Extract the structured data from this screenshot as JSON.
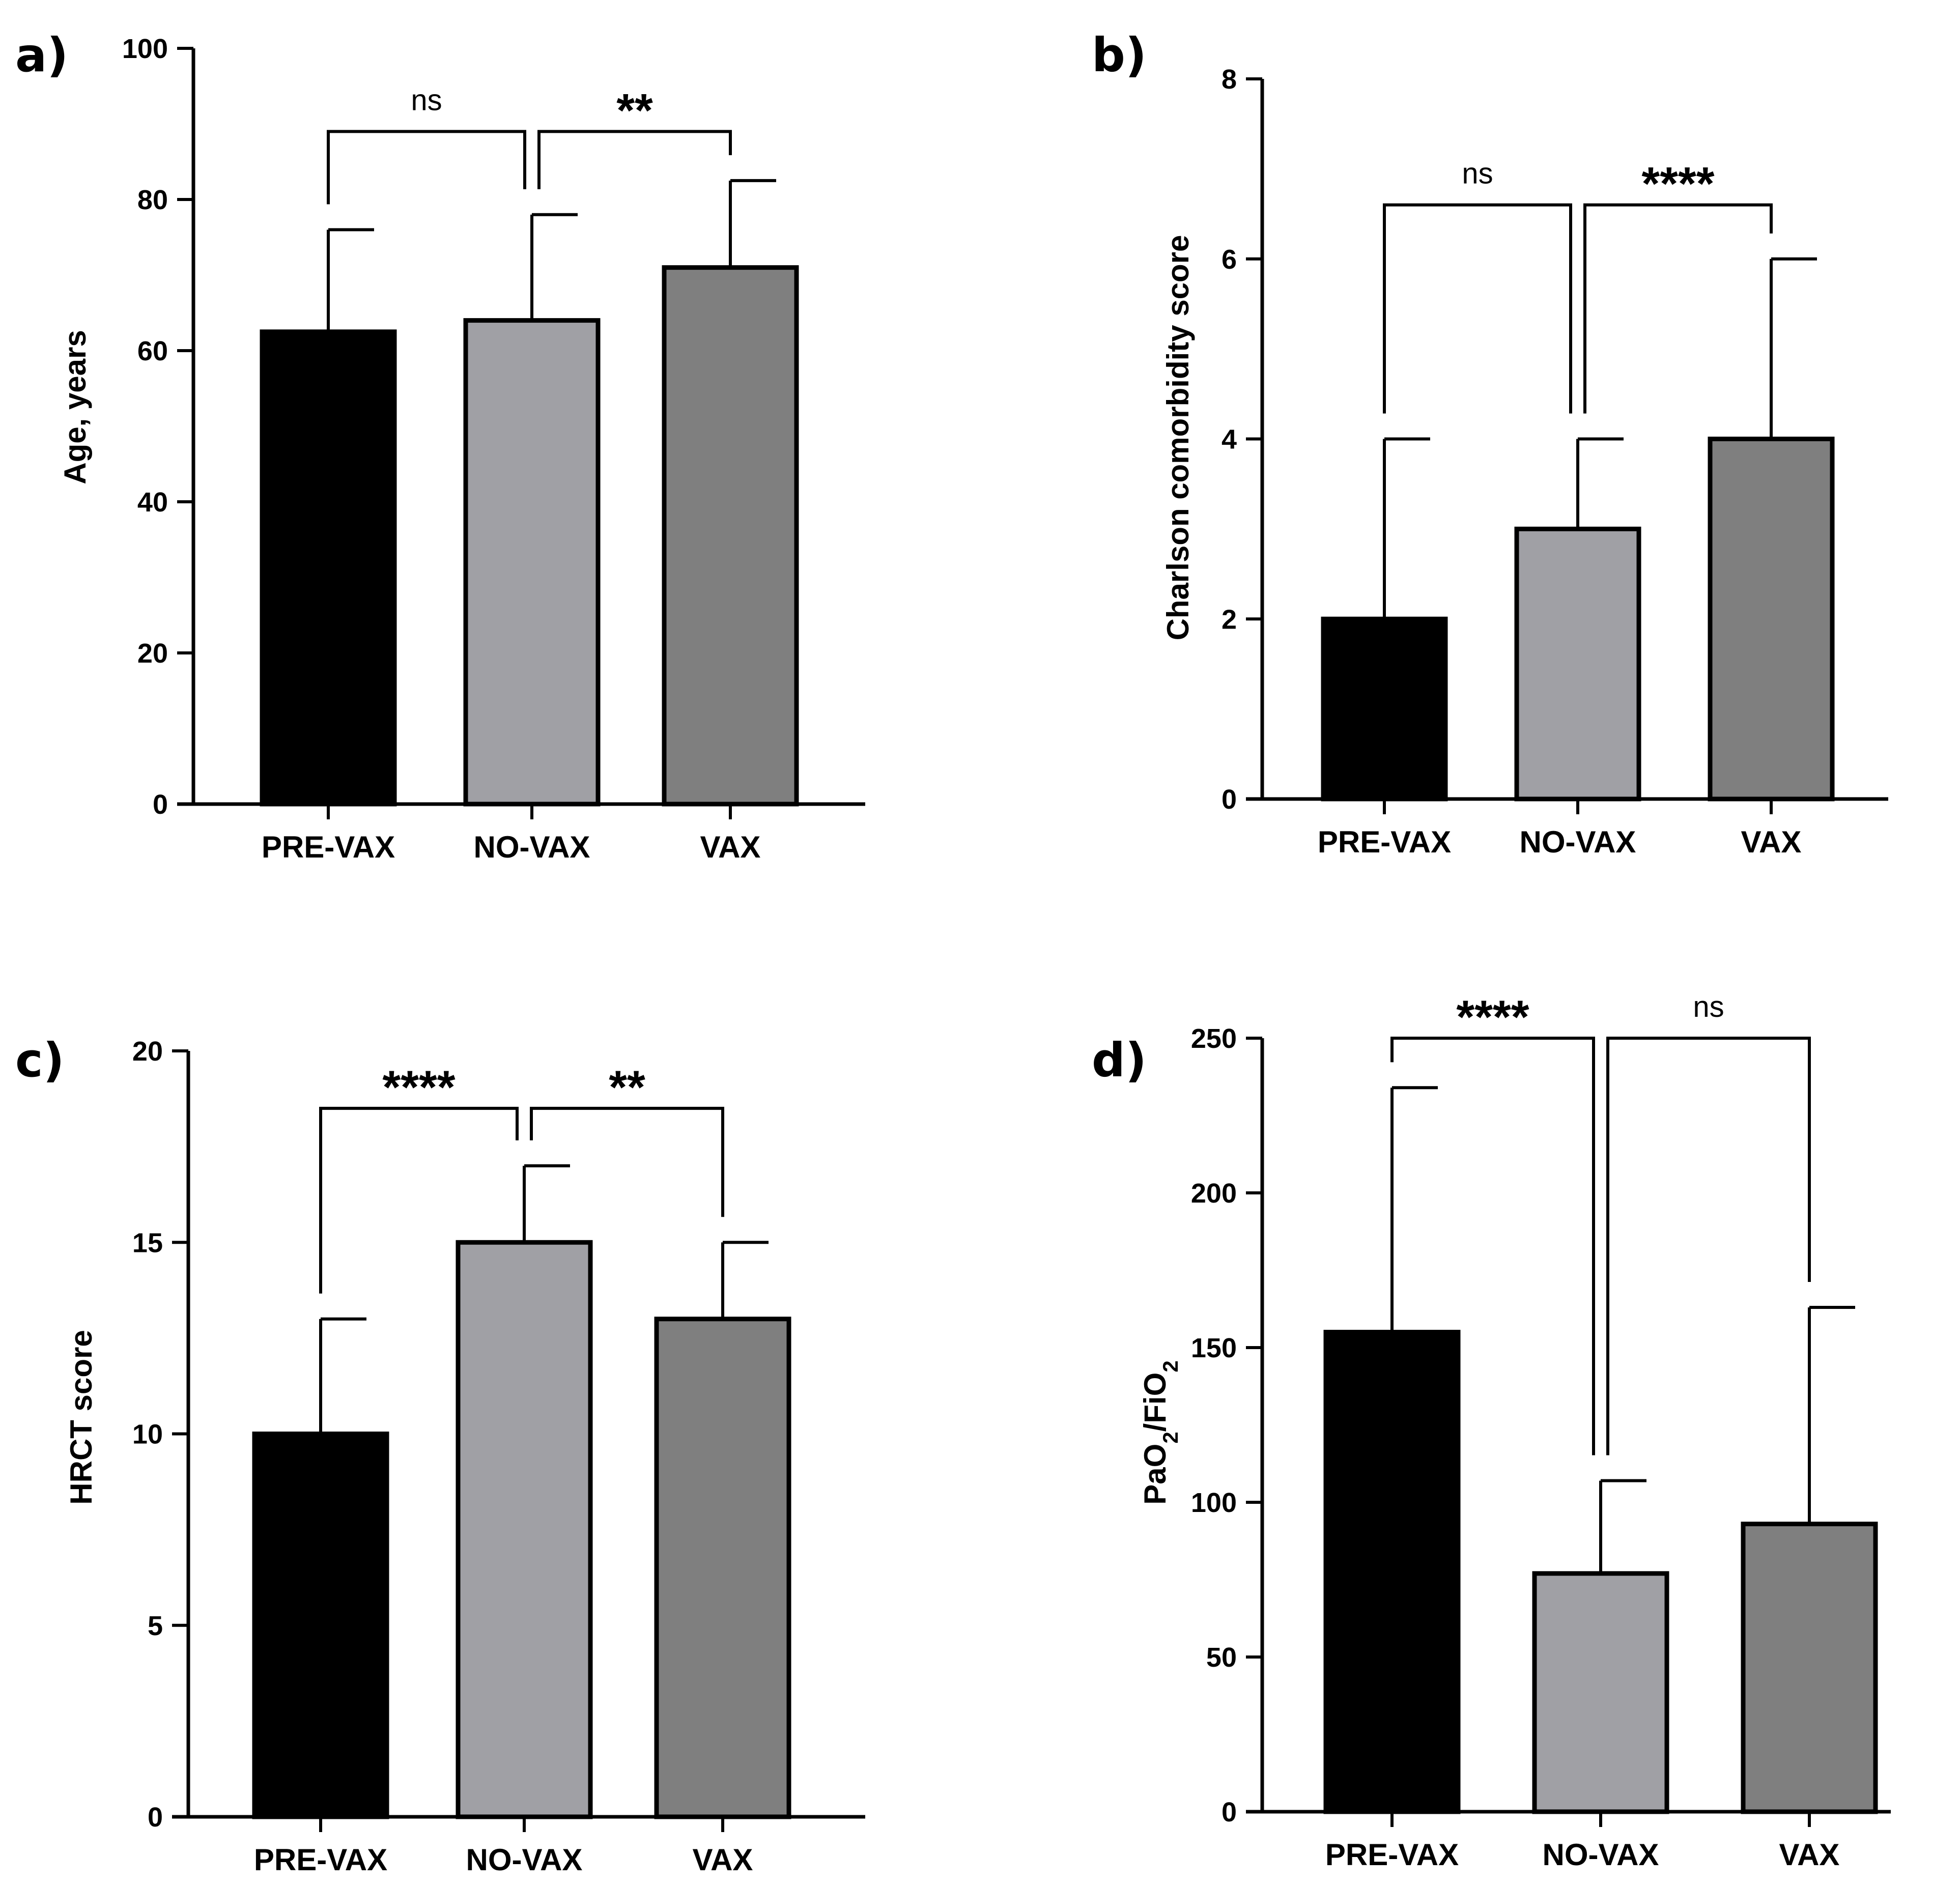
{
  "colors": {
    "PRE-VAX": "#000000",
    "NO-VAX": "#a0a0a5",
    "VAX": "#7f7f7f",
    "axis": "#000000"
  },
  "chart_data": [
    {
      "panel": "a)",
      "type": "bar",
      "title": "",
      "xlabel": "",
      "ylabel": "Age, years",
      "ylim": [
        0,
        100
      ],
      "ticks": [
        0,
        20,
        40,
        60,
        80,
        100
      ],
      "tick_labels": [
        "0",
        "20",
        "40",
        "60",
        "80",
        "100"
      ],
      "categories": [
        "PRE-VAX",
        "NO-VAX",
        "VAX"
      ],
      "values": [
        62.5,
        64,
        71
      ],
      "error_upper": [
        76,
        78,
        82.5
      ],
      "comparisons": [
        {
          "from": 0,
          "to": 1,
          "label": "ns",
          "level": 89
        },
        {
          "from": 1,
          "to": 2,
          "label": "**",
          "level": 89
        }
      ]
    },
    {
      "panel": "b)",
      "type": "bar",
      "title": "",
      "xlabel": "",
      "ylabel": "Charlson comorbidity score",
      "ylim": [
        0,
        8
      ],
      "ticks": [
        0,
        2,
        4,
        6,
        8
      ],
      "tick_labels": [
        "0",
        "2",
        "4",
        "6",
        "8"
      ],
      "categories": [
        "PRE-VAX",
        "NO-VAX",
        "VAX"
      ],
      "values": [
        2,
        3,
        4
      ],
      "error_upper": [
        4,
        4,
        6
      ],
      "comparisons": [
        {
          "from": 0,
          "to": 1,
          "label": "ns",
          "level": 6.6
        },
        {
          "from": 1,
          "to": 2,
          "label": "****",
          "level": 6.6
        }
      ]
    },
    {
      "panel": "c)",
      "type": "bar",
      "title": "",
      "xlabel": "",
      "ylabel": "HRCT score",
      "ylim": [
        0,
        20
      ],
      "ticks": [
        0,
        5,
        10,
        15,
        20
      ],
      "tick_labels": [
        "0",
        "5",
        "10",
        "15",
        "20"
      ],
      "categories": [
        "PRE-VAX",
        "NO-VAX",
        "VAX"
      ],
      "values": [
        10,
        15,
        13
      ],
      "error_upper": [
        13,
        17,
        15
      ],
      "comparisons": [
        {
          "from": 0,
          "to": 1,
          "label": "****",
          "level": 18.5
        },
        {
          "from": 1,
          "to": 2,
          "label": "**",
          "level": 18.5
        }
      ]
    },
    {
      "panel": "d)",
      "type": "bar",
      "title": "",
      "xlabel": "",
      "ylabel": "PaO2/FiO2",
      "ylim": [
        0,
        250
      ],
      "ticks": [
        0,
        50,
        100,
        150,
        200,
        250
      ],
      "tick_labels": [
        "0",
        "50",
        "100",
        "150",
        "200",
        "250"
      ],
      "categories": [
        "PRE-VAX",
        "NO-VAX",
        "VAX"
      ],
      "values": [
        155,
        77,
        93
      ],
      "error_upper": [
        234,
        107,
        163
      ],
      "comparisons": [
        {
          "from": 0,
          "to": 1,
          "label": "****",
          "level": 250
        },
        {
          "from": 1,
          "to": 2,
          "label": "ns",
          "level": 250
        }
      ]
    }
  ]
}
